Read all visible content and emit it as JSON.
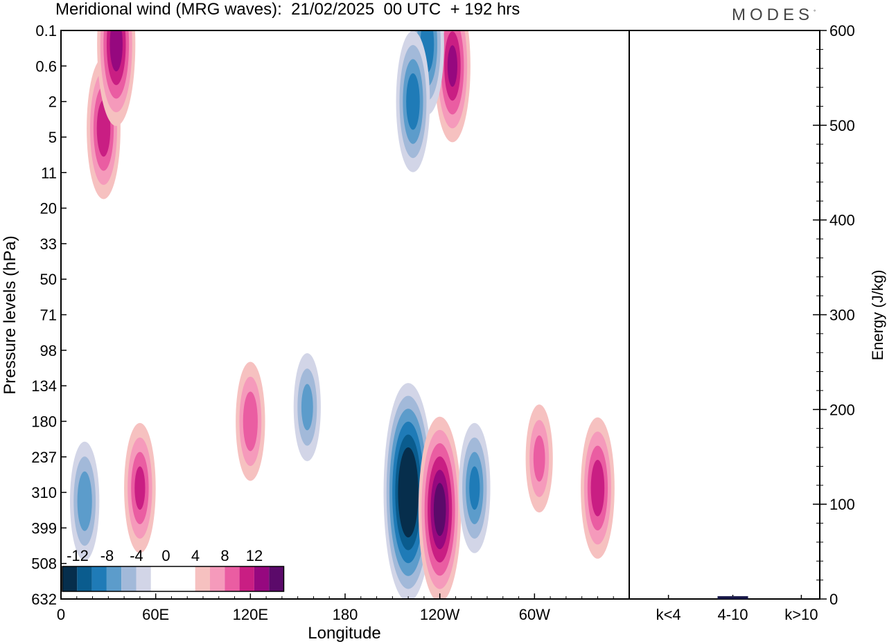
{
  "header": {
    "title": "Meridional wind (MRG waves):  21/02/2025  00 UTC  + 192 hrs",
    "brand": "MODES",
    "brand_mark": "°"
  },
  "colors": {
    "neg": [
      "#062e4c",
      "#0a5c8e",
      "#1f7bb7",
      "#5c9ccb",
      "#a2b9d9",
      "#d2d5e7"
    ],
    "pos": [
      "#f6c1c0",
      "#f59abb",
      "#ea5da2",
      "#c91e83",
      "#96087f",
      "#5b0a6a"
    ],
    "frame": "#000000",
    "energy_bar": "#1a1a4a"
  },
  "chart_data": [
    {
      "type": "heatmap",
      "title": "Meridional wind (MRG waves):  21/02/2025  00 UTC  + 192 hrs",
      "xlabel": "Longitude",
      "ylabel": "Pressure levels (hPa)",
      "x_ticks": [
        "0",
        "60E",
        "120E",
        "180",
        "120W",
        "60W"
      ],
      "y_ticks": [
        "0.1",
        "0.6",
        "2",
        "5",
        "11",
        "20",
        "33",
        "50",
        "71",
        "98",
        "134",
        "180",
        "237",
        "310",
        "399",
        "508",
        "632"
      ],
      "colorbar": {
        "labels": [
          "-12",
          "-8",
          "-4",
          "0",
          "4",
          "8",
          "12"
        ],
        "levels": [
          -14,
          -12,
          -10,
          -8,
          -6,
          -4,
          -2,
          2,
          4,
          6,
          8,
          10,
          12,
          14
        ]
      },
      "features": [
        {
          "lon": 220,
          "level": 310,
          "value": -16
        },
        {
          "lon": 240,
          "level": 350,
          "value": 13
        },
        {
          "lon": 262,
          "level": 300,
          "value": -8
        },
        {
          "lon": 15,
          "level": 330,
          "value": -7
        },
        {
          "lon": 50,
          "level": 300,
          "value": 8
        },
        {
          "lon": 120,
          "level": 180,
          "value": 7
        },
        {
          "lon": 156,
          "level": 160,
          "value": -6
        },
        {
          "lon": 303,
          "level": 240,
          "value": 6
        },
        {
          "lon": 340,
          "level": 300,
          "value": 9
        },
        {
          "lon": 27,
          "level": 4,
          "value": 9
        },
        {
          "lon": 35,
          "level": 0.2,
          "value": 11
        },
        {
          "lon": 248,
          "level": 0.6,
          "value": 10
        },
        {
          "lon": 232,
          "level": 0.2,
          "value": -9
        },
        {
          "lon": 223,
          "level": 2,
          "value": -9
        }
      ]
    },
    {
      "type": "bar",
      "ylabel": "Energy (J/kg)",
      "categories": [
        "k<4",
        "4-10",
        "k>10"
      ],
      "values": [
        0,
        3,
        0
      ],
      "ylim": [
        0,
        600
      ],
      "y_ticks": [
        "0",
        "100",
        "200",
        "300",
        "400",
        "500",
        "600"
      ]
    }
  ]
}
